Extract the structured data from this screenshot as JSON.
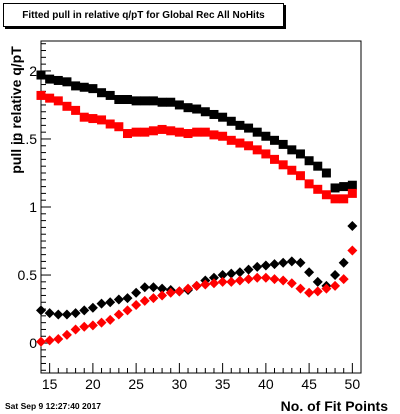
{
  "title": "Fitted pull in relative q/pT for Global Rec All NoHits",
  "timestamp": "Sat Sep  9 12:27:40 2017",
  "chart_data": {
    "type": "scatter",
    "xlabel": "No. of Fit Points",
    "ylabel": "pull in relative q/pT",
    "xlim": [
      14,
      51
    ],
    "ylim": [
      -0.22,
      2.22
    ],
    "xticks": [
      "15",
      "20",
      "25",
      "30",
      "35",
      "40",
      "45",
      "50"
    ],
    "yticks": [
      "0",
      "0.5",
      "1",
      "1.5",
      "2"
    ],
    "grid": false,
    "legend": "none",
    "x": [
      14,
      15,
      16,
      17,
      18,
      19,
      20,
      21,
      22,
      23,
      24,
      25,
      26,
      27,
      28,
      29,
      30,
      31,
      32,
      33,
      34,
      35,
      36,
      37,
      38,
      39,
      40,
      41,
      42,
      43,
      44,
      45,
      46,
      47,
      48,
      49,
      50
    ],
    "series": [
      {
        "color": "#000000",
        "marker": "square",
        "values": [
          1.97,
          1.94,
          1.93,
          1.92,
          1.89,
          1.88,
          1.87,
          1.84,
          1.82,
          1.79,
          1.79,
          1.78,
          1.78,
          1.78,
          1.77,
          1.77,
          1.75,
          1.73,
          1.72,
          1.7,
          1.68,
          1.66,
          1.63,
          1.6,
          1.58,
          1.55,
          1.52,
          1.49,
          1.46,
          1.42,
          1.39,
          1.34,
          1.3,
          1.25,
          1.14,
          1.15,
          1.16
        ]
      },
      {
        "color": "#ff0000",
        "marker": "square",
        "values": [
          1.82,
          1.8,
          1.78,
          1.74,
          1.71,
          1.66,
          1.65,
          1.64,
          1.61,
          1.59,
          1.54,
          1.55,
          1.55,
          1.56,
          1.57,
          1.56,
          1.55,
          1.54,
          1.55,
          1.55,
          1.53,
          1.52,
          1.49,
          1.47,
          1.45,
          1.42,
          1.39,
          1.35,
          1.31,
          1.27,
          1.23,
          1.17,
          1.13,
          1.09,
          1.06,
          1.06,
          1.1
        ]
      },
      {
        "color": "#000000",
        "marker": "diamond",
        "values": [
          0.24,
          0.22,
          0.21,
          0.21,
          0.22,
          0.24,
          0.26,
          0.29,
          0.3,
          0.32,
          0.33,
          0.37,
          0.41,
          0.41,
          0.4,
          0.39,
          0.38,
          0.39,
          0.42,
          0.46,
          0.48,
          0.5,
          0.51,
          0.52,
          0.54,
          0.56,
          0.57,
          0.58,
          0.59,
          0.6,
          0.59,
          0.52,
          0.45,
          0.42,
          0.5,
          0.59,
          0.86
        ]
      },
      {
        "color": "#ff0000",
        "marker": "diamond",
        "values": [
          0.01,
          0.02,
          0.03,
          0.06,
          0.1,
          0.12,
          0.13,
          0.15,
          0.17,
          0.21,
          0.24,
          0.28,
          0.31,
          0.33,
          0.35,
          0.37,
          0.38,
          0.4,
          0.42,
          0.43,
          0.44,
          0.45,
          0.45,
          0.46,
          0.47,
          0.48,
          0.48,
          0.47,
          0.46,
          0.44,
          0.4,
          0.37,
          0.38,
          0.4,
          0.42,
          0.47,
          0.68
        ]
      }
    ]
  }
}
